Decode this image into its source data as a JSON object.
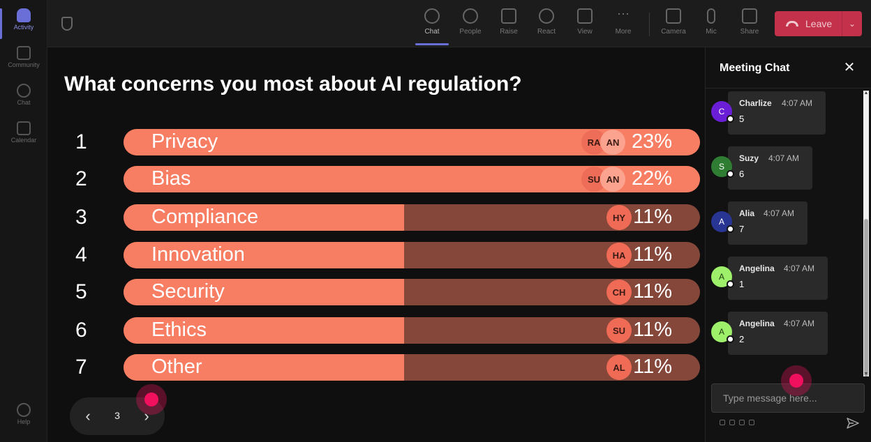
{
  "rail": {
    "items": [
      {
        "label": "Activity",
        "icon": "bell-icon"
      },
      {
        "label": "Community",
        "icon": "community-icon"
      },
      {
        "label": "Chat",
        "icon": "chat-icon"
      },
      {
        "label": "Calendar",
        "icon": "calendar-icon"
      }
    ],
    "help": {
      "label": "Help",
      "icon": "help-icon"
    }
  },
  "toolbar": {
    "tools": [
      {
        "label": "Chat",
        "icon": "chat-icon"
      },
      {
        "label": "People",
        "icon": "people-icon"
      },
      {
        "label": "Raise",
        "icon": "raise-hand-icon"
      },
      {
        "label": "React",
        "icon": "smiley-icon"
      },
      {
        "label": "View",
        "icon": "grid-view-icon"
      },
      {
        "label": "More",
        "icon": "more-icon"
      },
      {
        "label": "Camera",
        "icon": "camera-off-icon"
      },
      {
        "label": "Mic",
        "icon": "mic-icon"
      },
      {
        "label": "Share",
        "icon": "share-icon"
      }
    ],
    "leave_label": "Leave",
    "leave_color": "#c4314b"
  },
  "poll": {
    "question": "What concerns you most about AI regulation?",
    "options": [
      {
        "num": "1",
        "label": "Privacy",
        "pct": "23%",
        "value": 23,
        "avatars": [
          "RA",
          "AN"
        ]
      },
      {
        "num": "2",
        "label": "Bias",
        "pct": "22%",
        "value": 22,
        "avatars": [
          "SU",
          "AN"
        ]
      },
      {
        "num": "3",
        "label": "Compliance",
        "pct": "11%",
        "value": 11,
        "avatars": [
          "HY"
        ]
      },
      {
        "num": "4",
        "label": "Innovation",
        "pct": "11%",
        "value": 11,
        "avatars": [
          "HA"
        ]
      },
      {
        "num": "5",
        "label": "Security",
        "pct": "11%",
        "value": 11,
        "avatars": [
          "CH"
        ]
      },
      {
        "num": "6",
        "label": "Ethics",
        "pct": "11%",
        "value": 11,
        "avatars": [
          "SU"
        ]
      },
      {
        "num": "7",
        "label": "Other",
        "pct": "11%",
        "value": 11,
        "avatars": [
          "AL"
        ]
      }
    ],
    "bar_fill_color": "#f87e63",
    "bar_track_color": "#84473a"
  },
  "pager": {
    "page": "3",
    "prev_icon": "chevron-left-icon",
    "next_icon": "chevron-right-icon"
  },
  "chat": {
    "title": "Meeting Chat",
    "close_icon": "close-icon",
    "messages": [
      {
        "initial": "C",
        "name": "Charlize",
        "time": "4:07 AM",
        "text": "5",
        "color": "#6a1fd6"
      },
      {
        "initial": "S",
        "name": "Suzy",
        "time": "4:07 AM",
        "text": "6",
        "color": "#2e7d32"
      },
      {
        "initial": "A",
        "name": "Alia",
        "time": "4:07 AM",
        "text": "7",
        "color": "#283593"
      },
      {
        "initial": "A",
        "name": "Angelina",
        "time": "4:07 AM",
        "text": "1",
        "color": "#9ef06a"
      },
      {
        "initial": "A",
        "name": "Angelina",
        "time": "4:07 AM",
        "text": "2",
        "color": "#9ef06a"
      }
    ],
    "compose_placeholder": "Type message here...",
    "send_icon": "send-icon"
  }
}
